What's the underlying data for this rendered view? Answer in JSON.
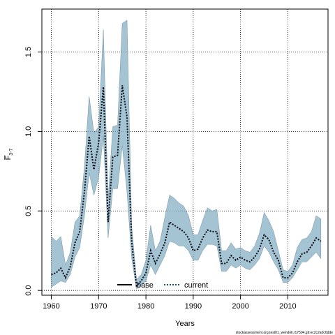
{
  "chart_data": {
    "type": "line",
    "xlabel": "Years",
    "ylabel": "F̅",
    "ylabel_sub": "3-7",
    "xlim": [
      1958,
      2018.5
    ],
    "ylim": [
      -0.03,
      1.77
    ],
    "xticks": [
      1960,
      1970,
      1980,
      1990,
      2000,
      2010
    ],
    "yticks": [
      0.0,
      0.5,
      1.0,
      1.5
    ],
    "ytick_labels": [
      "0.0",
      "0.5",
      "1.0",
      "1.5"
    ],
    "grid": true,
    "legend_position": "bottom-center",
    "legend": [
      {
        "name": "base",
        "style": "solid",
        "color": "#000000"
      },
      {
        "name": "current",
        "style": "dotted",
        "color": "#1b4f72"
      }
    ],
    "band_color": "#7ea9c1",
    "x": [
      1960,
      1961,
      1962,
      1963,
      1964,
      1965,
      1966,
      1967,
      1968,
      1969,
      1970,
      1971,
      1972,
      1973,
      1974,
      1975,
      1976,
      1977,
      1978,
      1979,
      1980,
      1981,
      1982,
      1983,
      1984,
      1985,
      1986,
      1987,
      1988,
      1989,
      1990,
      1991,
      1992,
      1993,
      1994,
      1995,
      1996,
      1997,
      1998,
      1999,
      2000,
      2001,
      2002,
      2003,
      2004,
      2005,
      2006,
      2007,
      2008,
      2009,
      2010,
      2011,
      2012,
      2013,
      2014,
      2015,
      2016,
      2017
    ],
    "series": [
      {
        "name": "current",
        "values": [
          0.1,
          0.11,
          0.14,
          0.08,
          0.15,
          0.3,
          0.37,
          0.62,
          0.97,
          0.76,
          0.93,
          1.28,
          0.43,
          0.84,
          0.85,
          1.29,
          1.09,
          0.3,
          0.03,
          0.06,
          0.11,
          0.25,
          0.17,
          0.23,
          0.3,
          0.43,
          0.41,
          0.39,
          0.37,
          0.33,
          0.25,
          0.26,
          0.33,
          0.38,
          0.37,
          0.37,
          0.17,
          0.17,
          0.22,
          0.19,
          0.21,
          0.19,
          0.18,
          0.21,
          0.26,
          0.35,
          0.32,
          0.24,
          0.19,
          0.08,
          0.08,
          0.11,
          0.18,
          0.23,
          0.24,
          0.28,
          0.33,
          0.31
        ]
      }
    ],
    "band_upper": [
      0.34,
      0.31,
      0.34,
      0.16,
      0.24,
      0.43,
      0.47,
      0.78,
      1.22,
      0.99,
      1.03,
      1.64,
      0.57,
      1.03,
      1.04,
      1.68,
      1.7,
      0.4,
      0.07,
      0.1,
      0.19,
      0.41,
      0.25,
      0.31,
      0.46,
      0.6,
      0.58,
      0.55,
      0.53,
      0.47,
      0.35,
      0.35,
      0.44,
      0.52,
      0.5,
      0.51,
      0.25,
      0.25,
      0.3,
      0.26,
      0.27,
      0.25,
      0.24,
      0.28,
      0.36,
      0.49,
      0.44,
      0.37,
      0.25,
      0.13,
      0.12,
      0.16,
      0.27,
      0.32,
      0.33,
      0.37,
      0.47,
      0.45
    ],
    "band_lower": [
      0.02,
      0.04,
      0.06,
      0.05,
      0.1,
      0.21,
      0.27,
      0.47,
      0.74,
      0.6,
      0.71,
      0.97,
      0.33,
      0.64,
      0.64,
      0.91,
      0.62,
      0.2,
      0.01,
      0.03,
      0.06,
      0.16,
      0.1,
      0.16,
      0.22,
      0.31,
      0.3,
      0.28,
      0.28,
      0.25,
      0.19,
      0.19,
      0.25,
      0.29,
      0.29,
      0.28,
      0.12,
      0.12,
      0.16,
      0.14,
      0.16,
      0.14,
      0.13,
      0.16,
      0.2,
      0.28,
      0.24,
      0.18,
      0.13,
      0.05,
      0.05,
      0.08,
      0.13,
      0.18,
      0.18,
      0.21,
      0.24,
      0.2
    ]
  },
  "footer": "stockassessment.org,test01_wendell,r17504,git:ec2c2a0c6dde"
}
